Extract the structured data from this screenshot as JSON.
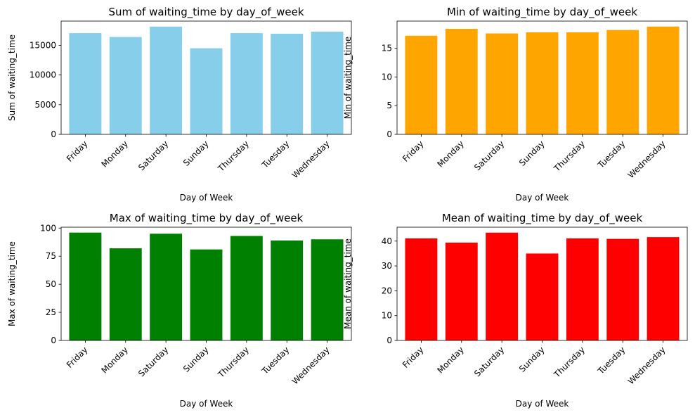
{
  "chart_data": [
    {
      "type": "bar",
      "title": "Sum of waiting_time by day_of_week",
      "xlabel": "Day of Week",
      "ylabel": "Sum of waiting_time",
      "categories": [
        "Friday",
        "Monday",
        "Saturday",
        "Sunday",
        "Thursday",
        "Tuesday",
        "Wednesday"
      ],
      "values": [
        17050,
        16400,
        18150,
        14500,
        17050,
        16950,
        17300
      ],
      "ylim": [
        0,
        19075
      ],
      "yticks": [
        0,
        5000,
        10000,
        15000
      ],
      "color": "#87ceeb"
    },
    {
      "type": "bar",
      "title": "Min of waiting_time by day_of_week",
      "xlabel": "Day of Week",
      "ylabel": "Min of waiting_time",
      "categories": [
        "Friday",
        "Monday",
        "Saturday",
        "Sunday",
        "Thursday",
        "Tuesday",
        "Wednesday"
      ],
      "values": [
        17.2,
        18.4,
        17.6,
        17.8,
        17.8,
        18.2,
        18.8
      ],
      "ylim": [
        0,
        19.75
      ],
      "yticks": [
        0,
        5,
        10,
        15
      ],
      "color": "#ffa500"
    },
    {
      "type": "bar",
      "title": "Max of waiting_time by day_of_week",
      "xlabel": "Day of Week",
      "ylabel": "Max of waiting_time",
      "categories": [
        "Friday",
        "Monday",
        "Saturday",
        "Sunday",
        "Thursday",
        "Tuesday",
        "Wednesday"
      ],
      "values": [
        96,
        82,
        95,
        81,
        93,
        89,
        90
      ],
      "ylim": [
        0,
        100.8
      ],
      "yticks": [
        0,
        25,
        50,
        75,
        100
      ],
      "color": "#008000"
    },
    {
      "type": "bar",
      "title": "Mean of waiting_time by day_of_week",
      "xlabel": "Day of Week",
      "ylabel": "Mean of waiting_time",
      "categories": [
        "Friday",
        "Monday",
        "Saturday",
        "Sunday",
        "Thursday",
        "Tuesday",
        "Wednesday"
      ],
      "values": [
        41.1,
        39.4,
        43.4,
        35.0,
        41.1,
        40.9,
        41.6
      ],
      "ylim": [
        0,
        45.6
      ],
      "yticks": [
        0,
        10,
        20,
        30,
        40
      ],
      "color": "#ff0000"
    }
  ]
}
